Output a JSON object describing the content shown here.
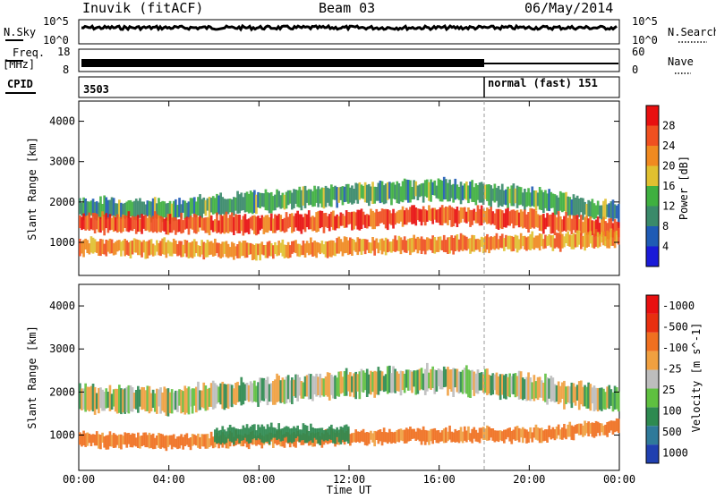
{
  "header": {
    "station": "Inuvik (fitACF)",
    "beam": "Beam 03",
    "date": "06/May/2014"
  },
  "top_panels": {
    "nsky_label": "N.Sky",
    "nsearch_label": "N.Search",
    "freq_label_1": "Freq.",
    "freq_label_2": "[MHz]",
    "nave_label": "Nave",
    "cpid_label": "CPID",
    "noise_ticks": [
      "10^5",
      "10^0"
    ],
    "freq_ticks": [
      "18",
      "8"
    ],
    "nave_ticks": [
      "60",
      "0"
    ],
    "cpid_segments": [
      {
        "label": "3503",
        "start_hour": 0,
        "end_hour": 18
      },
      {
        "label": "normal (fast) 151",
        "start_hour": 18,
        "end_hour": 24
      }
    ]
  },
  "chart_data": [
    {
      "type": "heatmap",
      "title": "",
      "xlabel": "Time UT",
      "ylabel": "Slant Range [km]",
      "xlim": [
        "00:00",
        "24:00"
      ],
      "ylim": [
        180,
        4500
      ],
      "x_ticks": [
        "00:00",
        "04:00",
        "08:00",
        "12:00",
        "16:00",
        "20:00",
        "00:00"
      ],
      "y_ticks": [
        1000,
        2000,
        3000,
        4000
      ],
      "colorbar_label": "Power [dB]",
      "colorbar_ticks": [
        4,
        8,
        12,
        16,
        20,
        24,
        28
      ],
      "colorbar_colors": [
        "#1a1ad8",
        "#1f5bb5",
        "#3a8a6a",
        "#3fb040",
        "#e0c030",
        "#f08a20",
        "#f05020",
        "#e81010"
      ],
      "echo_bands": [
        {
          "start_hour": 0,
          "end_hour": 24,
          "center_km": [
            1850,
            1800,
            2000,
            2200,
            2300,
            2100,
            1700
          ],
          "half_width_km": 220,
          "power_db": 12
        },
        {
          "start_hour": 0,
          "end_hour": 24,
          "center_km": [
            1500,
            1450,
            1450,
            1550,
            1700,
            1550,
            1300
          ],
          "half_width_km": 200,
          "power_db": 26
        },
        {
          "start_hour": 0,
          "end_hour": 24,
          "center_km": [
            900,
            850,
            800,
            900,
            950,
            1000,
            1100
          ],
          "half_width_km": 170,
          "power_db": 22
        }
      ]
    },
    {
      "type": "heatmap",
      "title": "",
      "xlabel": "Time UT",
      "ylabel": "Slant Range [km]",
      "xlim": [
        "00:00",
        "24:00"
      ],
      "ylim": [
        180,
        4500
      ],
      "x_ticks": [
        "00:00",
        "04:00",
        "08:00",
        "12:00",
        "16:00",
        "20:00",
        "00:00"
      ],
      "y_ticks": [
        1000,
        2000,
        3000,
        4000
      ],
      "colorbar_label": "Velocity [m s^-1]",
      "colorbar_ticks": [
        "1000",
        "500",
        "100",
        "25",
        "-25",
        "-100",
        "-500",
        "-1000"
      ],
      "colorbar_colors": [
        "#2040b0",
        "#2f7a9a",
        "#2e8a50",
        "#5fc040",
        "#bdbdbd",
        "#f0a040",
        "#f07020",
        "#e83010",
        "#e81010"
      ],
      "echo_bands": [
        {
          "start_hour": 0,
          "end_hour": 24,
          "center_km": [
            1850,
            1800,
            2000,
            2200,
            2300,
            2100,
            1800
          ],
          "half_width_km": 260,
          "velocity": 0
        },
        {
          "start_hour": 0,
          "end_hour": 24,
          "center_km": [
            900,
            850,
            900,
            950,
            1000,
            1000,
            1200
          ],
          "half_width_km": 140,
          "velocity": -150
        },
        {
          "start_hour": 6,
          "end_hour": 12,
          "center_km": [
            1000,
            1050,
            1000
          ],
          "half_width_km": 160,
          "velocity": 200
        }
      ]
    }
  ]
}
